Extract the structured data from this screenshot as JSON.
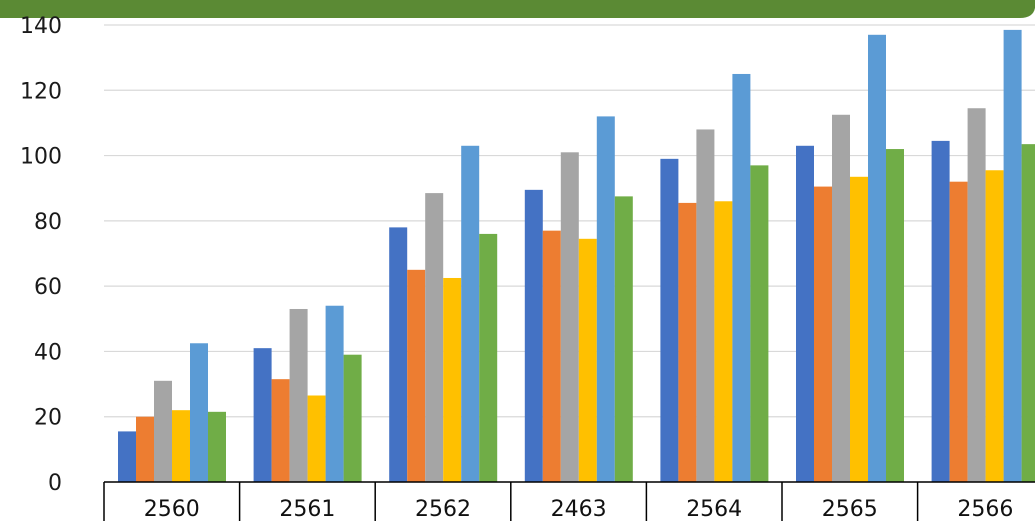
{
  "chart_data": {
    "type": "bar",
    "categories": [
      "2560",
      "2561",
      "2562",
      "2463",
      "2564",
      "2565",
      "2566"
    ],
    "series": [
      {
        "color": "#4472C4",
        "values": [
          15.5,
          41,
          78,
          89.5,
          99,
          103,
          104.5
        ]
      },
      {
        "color": "#ED7D31",
        "values": [
          20,
          31.5,
          65,
          77,
          85.5,
          90.5,
          92
        ]
      },
      {
        "color": "#A5A5A5",
        "values": [
          31,
          53,
          88.5,
          101,
          108,
          112.5,
          114.5
        ]
      },
      {
        "color": "#FFC000",
        "values": [
          22,
          26.5,
          62.5,
          74.5,
          86,
          93.5,
          95.5
        ]
      },
      {
        "color": "#5B9BD5",
        "values": [
          42.5,
          54,
          103,
          112,
          125,
          137,
          138.5
        ]
      },
      {
        "color": "#70AD47",
        "values": [
          21.5,
          39,
          76,
          87.5,
          97,
          102,
          103.5
        ]
      }
    ],
    "ylim": [
      0,
      140
    ],
    "yticks": [
      "0",
      "20",
      "40",
      "60",
      "80",
      "100",
      "120",
      "140"
    ],
    "grid": true,
    "legend": "none"
  },
  "theme": {
    "banner_color": "#5B8A34",
    "grid_color": "#D9D9D9"
  }
}
